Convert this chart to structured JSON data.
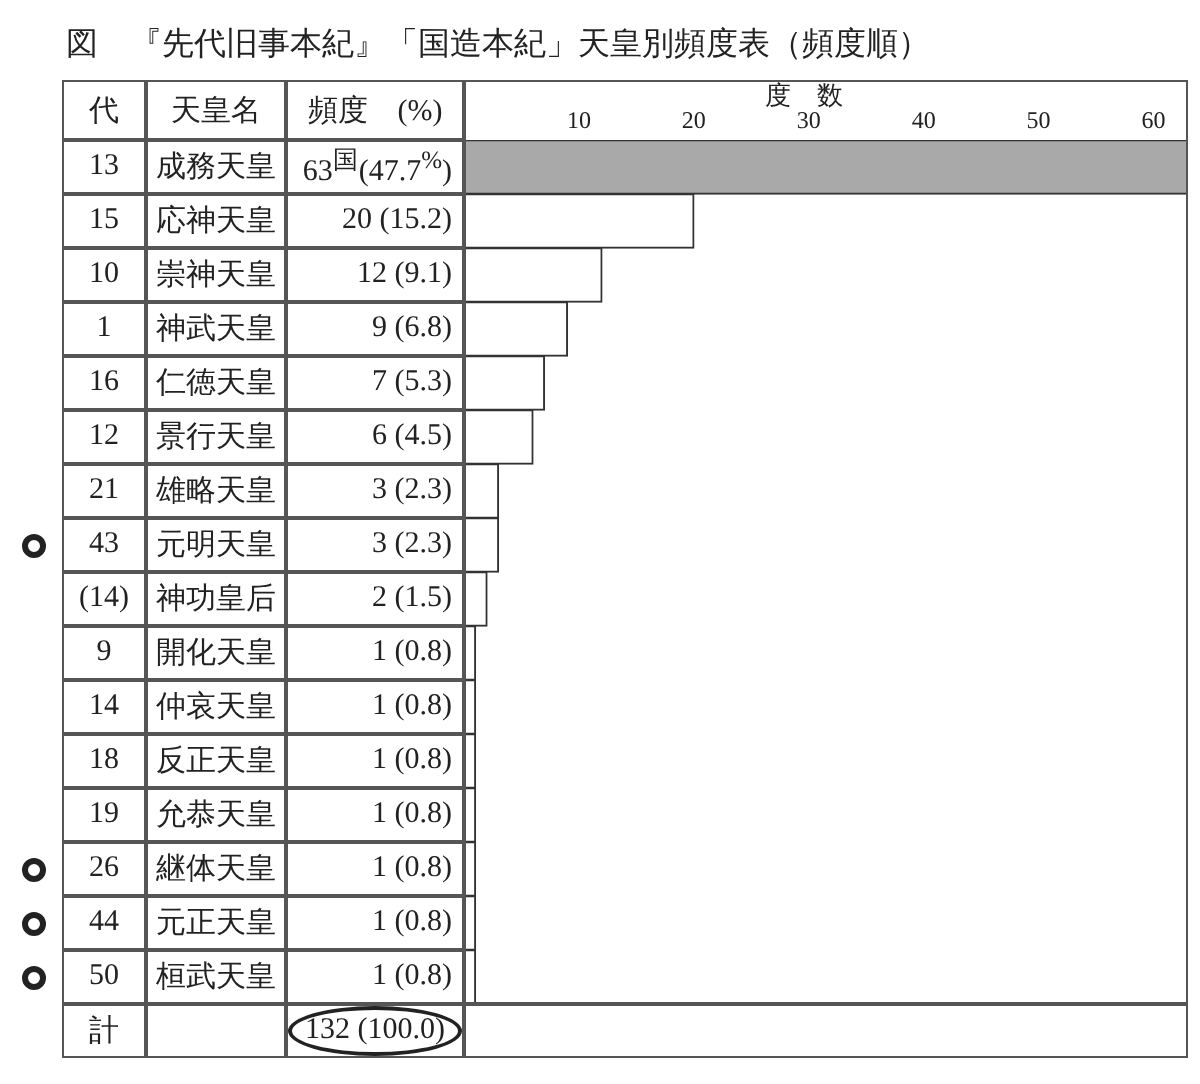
{
  "chart_data": {
    "type": "bar",
    "orientation": "horizontal",
    "title": "図　『先代旧事本紀』「国造本紀」天皇別頻度表（頻度順）",
    "xlabel": "度　数",
    "ylabel": "天皇名",
    "y2label": "代",
    "categories": [
      "成務天皇",
      "応神天皇",
      "崇神天皇",
      "神武天皇",
      "仁徳天皇",
      "景行天皇",
      "雄略天皇",
      "元明天皇",
      "神功皇后",
      "開化天皇",
      "仲哀天皇",
      "反正天皇",
      "允恭天皇",
      "継体天皇",
      "元正天皇",
      "桓武天皇"
    ],
    "y2_categories": [
      "13",
      "15",
      "10",
      "1",
      "16",
      "12",
      "21",
      "43",
      "(14)",
      "9",
      "14",
      "18",
      "19",
      "26",
      "44",
      "50"
    ],
    "values": [
      63,
      20,
      12,
      9,
      7,
      6,
      3,
      3,
      2,
      1,
      1,
      1,
      1,
      1,
      1,
      1
    ],
    "value_labels": [
      "63$^{国}$(47.7$^{%}$)",
      "20 (15.2)",
      "12 (9.1)",
      "9 (6.8)",
      "7 (5.3)",
      "6 (4.5)",
      "3 (2.3)",
      "3 (2.3)",
      "2 (1.5)",
      "1 (0.8)",
      "1 (0.8)",
      "1 (0.8)",
      "1 (0.8)",
      "1 (0.8)",
      "1 (0.8)",
      "1 (0.8)"
    ],
    "colors": [
      "#a9a9a9",
      "#ffffff",
      "#ffffff",
      "#ffffff",
      "#ffffff",
      "#ffffff",
      "#ffffff",
      "#ffffff",
      "#ffffff",
      "#ffffff",
      "#ffffff",
      "#ffffff",
      "#ffffff",
      "#ffffff",
      "#ffffff",
      "#ffffff"
    ],
    "xlim": [
      0,
      63
    ],
    "xticks": [
      10,
      20,
      30,
      40,
      50,
      60
    ],
    "annotations": [
      "頻度　(%)",
      "計",
      "132 (100.0)"
    ]
  }
}
